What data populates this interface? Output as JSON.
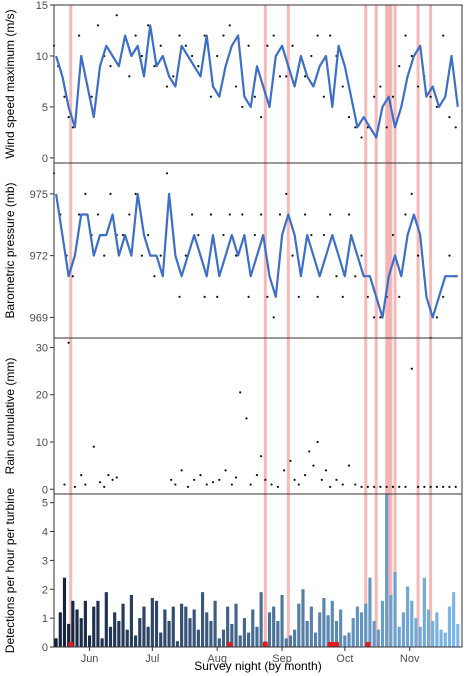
{
  "x_axis": {
    "label": "Survey night (by month)",
    "range": [
      "2017-05-15",
      "2017-11-26"
    ],
    "month_ticks": [
      {
        "date": "2017-06-01",
        "label": "Jun"
      },
      {
        "date": "2017-07-01",
        "label": "Jul"
      },
      {
        "date": "2017-08-01",
        "label": "Aug"
      },
      {
        "date": "2017-09-01",
        "label": "Sep"
      },
      {
        "date": "2017-10-01",
        "label": "Oct"
      },
      {
        "date": "2017-11-01",
        "label": "Nov"
      }
    ]
  },
  "event_lines": {
    "color": "#f4a6a6",
    "dates": [
      "2017-05-23",
      "2017-08-24",
      "2017-09-04",
      "2017-10-11",
      "2017-10-16",
      "2017-10-21",
      "2017-10-22",
      "2017-10-23",
      "2017-10-25",
      "2017-11-05",
      "2017-11-11"
    ]
  },
  "chart_data": [
    {
      "type": "line",
      "ylabel": "Wind speed maximum (m/s)",
      "ylim": [
        -0.5,
        15
      ],
      "yticks": [
        0,
        5,
        10,
        15
      ],
      "line_color": "#3d6fc9",
      "series": [
        {
          "x": [
            "2017-05-16",
            "2017-05-19",
            "2017-05-22",
            "2017-05-25",
            "2017-05-28",
            "2017-05-31",
            "2017-06-03",
            "2017-06-06",
            "2017-06-09",
            "2017-06-12",
            "2017-06-15",
            "2017-06-18",
            "2017-06-21",
            "2017-06-24",
            "2017-06-27",
            "2017-06-30",
            "2017-07-03",
            "2017-07-06",
            "2017-07-09",
            "2017-07-12",
            "2017-07-15",
            "2017-07-18",
            "2017-07-21",
            "2017-07-24",
            "2017-07-27",
            "2017-07-30",
            "2017-08-02",
            "2017-08-05",
            "2017-08-08",
            "2017-08-11",
            "2017-08-14",
            "2017-08-17",
            "2017-08-20",
            "2017-08-23",
            "2017-08-26",
            "2017-08-29",
            "2017-09-01",
            "2017-09-04",
            "2017-09-07",
            "2017-09-10",
            "2017-09-13",
            "2017-09-16",
            "2017-09-19",
            "2017-09-22",
            "2017-09-25",
            "2017-09-28",
            "2017-10-01",
            "2017-10-04",
            "2017-10-07",
            "2017-10-10",
            "2017-10-13",
            "2017-10-16",
            "2017-10-19",
            "2017-10-22",
            "2017-10-25",
            "2017-10-28",
            "2017-10-31",
            "2017-11-03",
            "2017-11-06",
            "2017-11-09",
            "2017-11-12",
            "2017-11-15",
            "2017-11-18",
            "2017-11-21",
            "2017-11-24"
          ],
          "y": [
            10,
            8,
            5,
            3,
            10,
            7,
            4,
            9,
            11,
            10,
            9,
            12,
            10,
            11,
            8,
            13,
            9,
            10,
            8,
            7,
            11,
            10,
            9,
            8,
            12,
            7,
            6,
            9,
            11,
            12,
            6,
            5,
            9,
            7,
            5,
            10,
            11,
            9,
            7,
            10,
            8,
            7,
            9,
            10,
            5,
            11,
            9,
            6,
            3,
            4,
            3,
            2,
            5,
            6,
            3,
            5,
            8,
            10,
            11,
            6,
            7,
            5,
            6,
            10,
            5
          ]
        }
      ],
      "points": {
        "x": [
          "2017-05-15",
          "2017-05-17",
          "2017-05-20",
          "2017-05-22",
          "2017-05-24",
          "2017-05-27",
          "2017-05-30",
          "2017-06-02",
          "2017-06-05",
          "2017-06-08",
          "2017-06-11",
          "2017-06-14",
          "2017-06-17",
          "2017-06-20",
          "2017-06-23",
          "2017-06-26",
          "2017-06-29",
          "2017-07-02",
          "2017-07-05",
          "2017-07-08",
          "2017-07-11",
          "2017-07-14",
          "2017-07-17",
          "2017-07-20",
          "2017-07-23",
          "2017-07-26",
          "2017-07-29",
          "2017-08-01",
          "2017-08-04",
          "2017-08-07",
          "2017-08-10",
          "2017-08-13",
          "2017-08-16",
          "2017-08-19",
          "2017-08-22",
          "2017-08-25",
          "2017-08-28",
          "2017-08-31",
          "2017-09-03",
          "2017-09-06",
          "2017-09-09",
          "2017-09-12",
          "2017-09-15",
          "2017-09-18",
          "2017-09-21",
          "2017-09-24",
          "2017-09-27",
          "2017-09-30",
          "2017-10-03",
          "2017-10-06",
          "2017-10-09",
          "2017-10-12",
          "2017-10-15",
          "2017-10-18",
          "2017-10-21",
          "2017-10-24",
          "2017-10-27",
          "2017-10-30",
          "2017-11-02",
          "2017-11-05",
          "2017-11-08",
          "2017-11-11",
          "2017-11-14",
          "2017-11-17",
          "2017-11-20",
          "2017-11-23"
        ],
        "y": [
          11,
          9,
          6,
          4,
          3,
          12,
          8,
          6,
          13,
          10,
          9,
          14,
          11,
          8,
          12,
          10,
          13,
          9,
          11,
          7,
          8,
          12,
          11,
          10,
          9,
          12,
          6,
          10,
          12,
          13,
          7,
          5,
          11,
          6,
          4,
          11,
          12,
          8,
          8,
          11,
          9,
          8,
          10,
          12,
          6,
          12,
          10,
          7,
          4,
          3,
          2,
          3,
          6,
          7,
          3,
          6,
          9,
          12,
          10,
          7,
          8,
          6,
          5,
          12,
          4,
          3
        ]
      }
    },
    {
      "type": "line",
      "ylabel": "Barometric pressure (mb)",
      "ylim": [
        968,
        976.5
      ],
      "yticks": [
        969,
        972,
        975
      ],
      "line_color": "#3d6fc9",
      "series": [
        {
          "x": [
            "2017-05-16",
            "2017-05-19",
            "2017-05-22",
            "2017-05-25",
            "2017-05-28",
            "2017-05-31",
            "2017-06-03",
            "2017-06-06",
            "2017-06-09",
            "2017-06-12",
            "2017-06-15",
            "2017-06-18",
            "2017-06-21",
            "2017-06-24",
            "2017-06-27",
            "2017-06-30",
            "2017-07-03",
            "2017-07-06",
            "2017-07-09",
            "2017-07-12",
            "2017-07-15",
            "2017-07-18",
            "2017-07-21",
            "2017-07-24",
            "2017-07-27",
            "2017-07-30",
            "2017-08-02",
            "2017-08-05",
            "2017-08-08",
            "2017-08-11",
            "2017-08-14",
            "2017-08-17",
            "2017-08-20",
            "2017-08-23",
            "2017-08-26",
            "2017-08-29",
            "2017-09-01",
            "2017-09-04",
            "2017-09-07",
            "2017-09-10",
            "2017-09-13",
            "2017-09-16",
            "2017-09-19",
            "2017-09-22",
            "2017-09-25",
            "2017-09-28",
            "2017-10-01",
            "2017-10-04",
            "2017-10-07",
            "2017-10-10",
            "2017-10-13",
            "2017-10-16",
            "2017-10-19",
            "2017-10-22",
            "2017-10-25",
            "2017-10-28",
            "2017-10-31",
            "2017-11-03",
            "2017-11-06",
            "2017-11-09",
            "2017-11-12",
            "2017-11-15",
            "2017-11-18",
            "2017-11-21",
            "2017-11-24"
          ],
          "y": [
            975,
            973,
            971,
            972,
            974,
            974,
            972,
            973,
            973,
            974,
            972,
            973,
            972,
            975,
            973,
            972,
            972,
            971,
            975,
            972,
            971,
            972,
            973,
            972,
            971,
            973,
            971,
            972,
            973,
            972,
            973,
            971,
            972,
            973,
            971,
            970,
            973,
            974,
            973,
            971,
            973,
            972,
            971,
            972,
            973,
            972,
            971,
            973,
            972,
            971,
            971,
            970,
            969,
            971,
            972,
            971,
            973,
            974,
            973,
            970,
            969,
            970,
            971,
            971,
            971
          ]
        }
      ],
      "points": {
        "x": [
          "2017-05-15",
          "2017-05-18",
          "2017-05-21",
          "2017-05-24",
          "2017-05-27",
          "2017-05-30",
          "2017-06-02",
          "2017-06-05",
          "2017-06-08",
          "2017-06-11",
          "2017-06-14",
          "2017-06-17",
          "2017-06-20",
          "2017-06-23",
          "2017-06-26",
          "2017-06-29",
          "2017-07-02",
          "2017-07-05",
          "2017-07-08",
          "2017-07-11",
          "2017-07-14",
          "2017-07-17",
          "2017-07-20",
          "2017-07-23",
          "2017-07-26",
          "2017-07-29",
          "2017-08-01",
          "2017-08-04",
          "2017-08-07",
          "2017-08-10",
          "2017-08-13",
          "2017-08-16",
          "2017-08-19",
          "2017-08-22",
          "2017-08-25",
          "2017-08-28",
          "2017-08-31",
          "2017-09-03",
          "2017-09-06",
          "2017-09-09",
          "2017-09-12",
          "2017-09-15",
          "2017-09-18",
          "2017-09-21",
          "2017-09-24",
          "2017-09-27",
          "2017-09-30",
          "2017-10-03",
          "2017-10-06",
          "2017-10-09",
          "2017-10-12",
          "2017-10-15",
          "2017-10-18",
          "2017-10-21",
          "2017-10-24",
          "2017-10-27",
          "2017-10-30",
          "2017-11-02",
          "2017-11-05",
          "2017-11-08",
          "2017-11-11",
          "2017-11-14",
          "2017-11-17",
          "2017-11-20",
          "2017-11-23"
        ],
        "y": [
          976,
          974,
          972,
          971,
          974,
          975,
          973,
          974,
          972,
          975,
          973,
          973,
          974,
          975,
          972,
          973,
          971,
          972,
          976,
          973,
          970,
          972,
          974,
          973,
          970,
          974,
          970,
          973,
          974,
          972,
          974,
          970,
          973,
          974,
          970,
          969,
          974,
          975,
          972,
          970,
          974,
          973,
          970,
          973,
          974,
          971,
          970,
          974,
          971,
          972,
          970,
          969,
          969,
          970,
          973,
          970,
          974,
          975,
          972,
          971,
          968,
          969,
          970,
          972,
          971
        ]
      }
    },
    {
      "type": "scatter",
      "ylabel": "Rain cumulative (mm)",
      "ylim": [
        -1,
        32
      ],
      "yticks": [
        0,
        10,
        20,
        30
      ],
      "points": {
        "x": [
          "2017-05-20",
          "2017-05-22",
          "2017-05-25",
          "2017-05-28",
          "2017-05-30",
          "2017-06-03",
          "2017-06-06",
          "2017-06-08",
          "2017-06-10",
          "2017-06-12",
          "2017-06-14",
          "2017-07-10",
          "2017-07-12",
          "2017-07-15",
          "2017-07-18",
          "2017-07-21",
          "2017-07-24",
          "2017-07-27",
          "2017-07-30",
          "2017-08-02",
          "2017-08-05",
          "2017-08-08",
          "2017-08-10",
          "2017-08-12",
          "2017-08-15",
          "2017-08-17",
          "2017-08-20",
          "2017-08-22",
          "2017-08-24",
          "2017-08-27",
          "2017-08-30",
          "2017-09-02",
          "2017-09-05",
          "2017-09-07",
          "2017-09-09",
          "2017-09-12",
          "2017-09-14",
          "2017-09-16",
          "2017-09-18",
          "2017-09-20",
          "2017-09-22",
          "2017-09-24",
          "2017-09-27",
          "2017-09-30",
          "2017-10-03",
          "2017-10-06",
          "2017-10-09",
          "2017-10-12",
          "2017-10-15",
          "2017-10-18",
          "2017-10-21",
          "2017-10-24",
          "2017-10-27",
          "2017-10-30",
          "2017-11-02",
          "2017-11-05",
          "2017-11-08",
          "2017-11-11",
          "2017-11-14",
          "2017-11-17",
          "2017-11-20",
          "2017-11-23"
        ],
        "y": [
          1,
          31,
          0.5,
          3,
          1,
          9,
          1.5,
          0.5,
          3,
          2,
          2.5,
          2,
          1,
          4,
          0.5,
          2,
          3,
          1,
          1.5,
          2,
          4,
          1,
          2.5,
          20.5,
          15,
          1,
          3,
          7,
          2,
          1,
          0.5,
          4,
          6,
          2,
          1,
          3,
          8,
          5,
          10,
          2,
          4,
          0.5,
          2,
          1,
          5,
          1,
          0.5,
          0.5,
          0.5,
          0.5,
          0.5,
          0.5,
          0.5,
          0.5,
          25.5,
          0.5,
          0.5,
          0.5,
          0.5,
          0.5,
          0.5,
          0.5
        ]
      }
    },
    {
      "type": "bar",
      "ylabel": "Detections per hour per turbine",
      "ylim": [
        0,
        5.3
      ],
      "yticks": [
        0,
        1,
        2,
        3,
        4,
        5
      ],
      "colors": {
        "early": "#14213d",
        "late": "#7cb9e8",
        "zero_marker": "#e41a1c"
      },
      "categories": [
        "2017-05-16",
        "2017-05-18",
        "2017-05-20",
        "2017-05-22",
        "2017-05-24",
        "2017-05-26",
        "2017-05-28",
        "2017-05-30",
        "2017-06-01",
        "2017-06-03",
        "2017-06-05",
        "2017-06-07",
        "2017-06-09",
        "2017-06-11",
        "2017-06-13",
        "2017-06-15",
        "2017-06-17",
        "2017-06-19",
        "2017-06-21",
        "2017-06-23",
        "2017-06-25",
        "2017-06-27",
        "2017-06-29",
        "2017-07-01",
        "2017-07-03",
        "2017-07-05",
        "2017-07-07",
        "2017-07-09",
        "2017-07-11",
        "2017-07-13",
        "2017-07-15",
        "2017-07-17",
        "2017-07-19",
        "2017-07-21",
        "2017-07-23",
        "2017-07-25",
        "2017-07-27",
        "2017-07-29",
        "2017-07-31",
        "2017-08-02",
        "2017-08-04",
        "2017-08-06",
        "2017-08-08",
        "2017-08-10",
        "2017-08-12",
        "2017-08-14",
        "2017-08-16",
        "2017-08-18",
        "2017-08-20",
        "2017-08-22",
        "2017-08-24",
        "2017-08-26",
        "2017-08-28",
        "2017-08-30",
        "2017-09-01",
        "2017-09-03",
        "2017-09-05",
        "2017-09-07",
        "2017-09-09",
        "2017-09-11",
        "2017-09-13",
        "2017-09-15",
        "2017-09-17",
        "2017-09-19",
        "2017-09-21",
        "2017-09-23",
        "2017-09-25",
        "2017-09-27",
        "2017-09-29",
        "2017-10-01",
        "2017-10-03",
        "2017-10-05",
        "2017-10-07",
        "2017-10-09",
        "2017-10-11",
        "2017-10-13",
        "2017-10-15",
        "2017-10-17",
        "2017-10-19",
        "2017-10-21",
        "2017-10-23",
        "2017-10-25",
        "2017-10-27",
        "2017-10-29",
        "2017-10-31",
        "2017-11-02",
        "2017-11-04",
        "2017-11-06",
        "2017-11-08",
        "2017-11-10",
        "2017-11-12",
        "2017-11-14",
        "2017-11-16",
        "2017-11-18",
        "2017-11-20",
        "2017-11-22",
        "2017-11-24"
      ],
      "values": [
        0.3,
        1.2,
        2.4,
        0.8,
        1.6,
        1.3,
        1.0,
        1.6,
        0.4,
        1.4,
        1.6,
        0.3,
        1.9,
        0.7,
        1.2,
        0.9,
        1.5,
        0.6,
        1.8,
        0.4,
        1.0,
        1.4,
        0.7,
        1.7,
        1.6,
        0.5,
        1.3,
        0.9,
        1.4,
        0.2,
        1.5,
        1.4,
        1.0,
        1.3,
        0.6,
        1.9,
        1.2,
        0.9,
        1.6,
        0.3,
        0.6,
        1.4,
        0.8,
        1.5,
        0.4,
        1.0,
        0.5,
        1.3,
        0.7,
        1.9,
        0.2,
        1.2,
        1.4,
        0.9,
        1.8,
        0.3,
        0.4,
        0.6,
        1.5,
        2.0,
        0.9,
        1.4,
        0.5,
        1.2,
        1.7,
        1.1,
        1.6,
        0.9,
        1.3,
        0.4,
        0.5,
        1.0,
        1.4,
        1.2,
        1.5,
        2.4,
        0.9,
        0.6,
        1.6,
        5.4,
        1.8,
        2.6,
        0.7,
        1.2,
        2.1,
        1.6,
        1.0,
        0.7,
        2.4,
        1.3,
        0.9,
        1.2,
        0.6,
        0.5,
        1.4,
        1.9,
        0.8
      ],
      "zero_nights": [
        "2017-05-23",
        "2017-08-07",
        "2017-08-24",
        "2017-09-24",
        "2017-09-25",
        "2017-09-26",
        "2017-09-27",
        "2017-10-12"
      ]
    }
  ]
}
